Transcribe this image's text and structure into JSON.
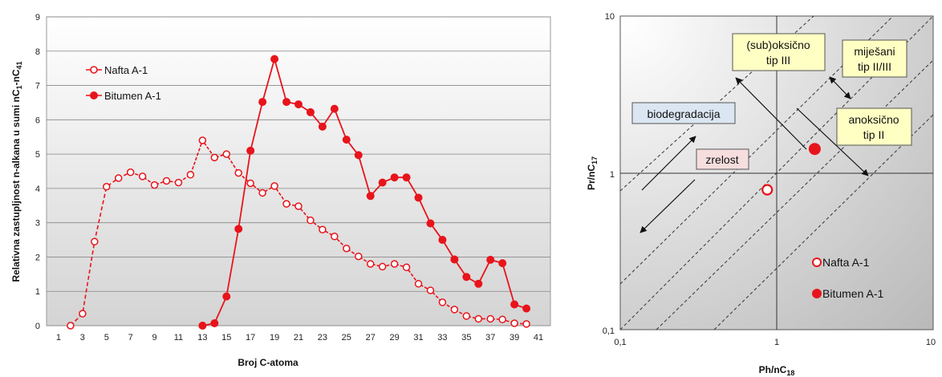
{
  "colors": {
    "series": "#e8141b",
    "grid": "#888888",
    "yellow_box": "#ffffc4",
    "blue_box": "#dbe6f2",
    "pink_box": "#f6dede"
  },
  "chart_data": [
    {
      "type": "line",
      "xlabel": "Broj C-atoma",
      "ylabel_parts": [
        "Relativna zastupljnost n-alkana u sumi nC",
        "1",
        "-nC",
        "41"
      ],
      "xlim": [
        0,
        42
      ],
      "ylim": [
        0,
        9
      ],
      "x_ticks": [
        1,
        3,
        5,
        7,
        9,
        11,
        13,
        15,
        17,
        19,
        21,
        23,
        25,
        27,
        29,
        31,
        33,
        35,
        37,
        39,
        41
      ],
      "y_ticks": [
        0,
        1,
        2,
        3,
        4,
        5,
        6,
        7,
        8,
        9
      ],
      "grid": "horizontal",
      "legend_placement": "top-left",
      "series": [
        {
          "name": "Nafta A-1",
          "marker": "open-circle",
          "dashed_until_x": 7,
          "x": [
            2,
            3,
            4,
            5,
            6,
            7,
            8,
            9,
            10,
            11,
            12,
            13,
            14,
            15,
            16,
            17,
            18,
            19,
            20,
            21,
            22,
            23,
            24,
            25,
            26,
            27,
            28,
            29,
            30,
            31,
            32,
            33,
            34,
            35,
            36,
            37,
            38,
            39,
            40
          ],
          "y": [
            0.0,
            0.35,
            2.45,
            4.05,
            4.3,
            4.47,
            4.35,
            4.1,
            4.22,
            4.17,
            4.4,
            5.4,
            4.9,
            5.0,
            4.45,
            4.15,
            3.87,
            4.07,
            3.55,
            3.48,
            3.07,
            2.8,
            2.6,
            2.25,
            2.02,
            1.8,
            1.72,
            1.8,
            1.7,
            1.22,
            1.03,
            0.68,
            0.47,
            0.28,
            0.2,
            0.2,
            0.18,
            0.07,
            0.05
          ]
        },
        {
          "name": "Bitumen A-1",
          "marker": "filled-circle",
          "x": [
            13,
            14,
            15,
            16,
            17,
            18,
            19,
            20,
            21,
            22,
            23,
            24,
            25,
            26,
            27,
            28,
            29,
            30,
            31,
            32,
            33,
            34,
            35,
            36,
            37,
            38,
            39,
            40
          ],
          "y": [
            0.0,
            0.07,
            0.85,
            2.82,
            5.1,
            6.52,
            7.77,
            6.52,
            6.45,
            6.22,
            5.8,
            6.32,
            5.42,
            4.97,
            3.78,
            4.17,
            4.32,
            4.32,
            3.73,
            2.98,
            2.5,
            1.93,
            1.42,
            1.22,
            1.92,
            1.82,
            0.62,
            0.5
          ]
        }
      ]
    },
    {
      "type": "scatter",
      "scale": "log-log",
      "xlabel_parts": [
        "Ph/nC",
        "18"
      ],
      "ylabel_parts": [
        "Pr/nC",
        "17"
      ],
      "xlim": [
        0.1,
        10
      ],
      "ylim": [
        0.1,
        10
      ],
      "x_ticks": [
        "0,1",
        "1",
        "10"
      ],
      "y_ticks": [
        "0,1",
        "1",
        "10"
      ],
      "legend_placement": "bottom-right",
      "zones": {
        "suboxic": [
          "(sub)oksično",
          "tip III"
        ],
        "mixed": [
          "miješani",
          "tip II/III"
        ],
        "anoxic": [
          "anoksično",
          "tip II"
        ],
        "biodegradation": "biodegradacija",
        "maturity": "zrelost"
      },
      "series": [
        {
          "name": "Nafta A-1",
          "marker": "open-circle",
          "x": [
            0.87
          ],
          "y": [
            0.78
          ]
        },
        {
          "name": "Bitumen A-1",
          "marker": "filled-circle",
          "x": [
            1.75
          ],
          "y": [
            1.42
          ]
        }
      ]
    }
  ]
}
